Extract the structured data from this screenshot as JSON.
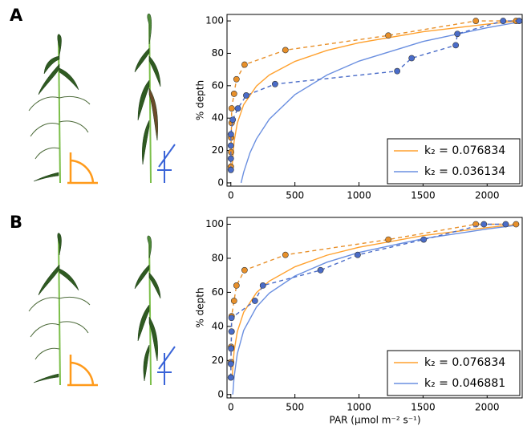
{
  "chart_data": [
    {
      "type": "line",
      "panel": "A",
      "ylabel": "% depth",
      "xlim": [
        -30,
        2280
      ],
      "ylim": [
        -2,
        104
      ],
      "xticks": [
        0,
        500,
        1000,
        1500,
        2000
      ],
      "yticks": [
        0,
        20,
        40,
        60,
        80,
        100
      ],
      "legend": "lower right",
      "series": [
        {
          "name": "k₂ = 0.076834",
          "color": "#ffa12e",
          "linestyle": "solid",
          "x": [
            10,
            25,
            50,
            100,
            200,
            300,
            500,
            750,
            1000,
            1500,
            2000,
            2250
          ],
          "values": [
            10.1,
            25.3,
            36.8,
            48.3,
            59.8,
            66.6,
            75.0,
            81.8,
            86.5,
            93.3,
            98.0,
            100
          ]
        },
        {
          "name": "k₂ = 0.036134",
          "color": "#6a8fe0",
          "linestyle": "solid",
          "x": [
            80,
            100,
            150,
            200,
            300,
            500,
            750,
            1000,
            1500,
            2000,
            2250
          ],
          "values": [
            0,
            6.6,
            18.7,
            27.2,
            39.3,
            54.5,
            66.6,
            75.2,
            87.3,
            95.8,
            99.3
          ]
        },
        {
          "color": "#e8902a",
          "linestyle": "dashed",
          "marker": true,
          "x": [
            0,
            2,
            2,
            6,
            6,
            25,
            44,
            107,
            426,
            1229,
            1912,
            2226
          ],
          "values": [
            10,
            19,
            28,
            37,
            46,
            55,
            64,
            73,
            82,
            91,
            100,
            100
          ]
        },
        {
          "color": "#4a6cc8",
          "linestyle": "dashed",
          "marker": true,
          "x": [
            0,
            0,
            0,
            0,
            15,
            55,
            120,
            345,
            1298,
            1411,
            1755,
            1768,
            2125,
            2250
          ],
          "values": [
            8,
            15,
            23,
            30,
            39,
            46,
            54,
            61,
            69,
            77,
            85,
            92,
            100,
            100
          ]
        }
      ]
    },
    {
      "type": "line",
      "panel": "B",
      "ylabel": "% depth",
      "xlabel": "PAR (μmol m⁻² s⁻¹)",
      "xlim": [
        -30,
        2280
      ],
      "ylim": [
        -2,
        104
      ],
      "xticks": [
        0,
        500,
        1000,
        1500,
        2000
      ],
      "yticks": [
        0,
        20,
        40,
        60,
        80,
        100
      ],
      "legend": "lower right",
      "series": [
        {
          "name": "k₂ = 0.076834",
          "color": "#ffa12e",
          "linestyle": "solid",
          "x": [
            10,
            25,
            50,
            100,
            200,
            300,
            500,
            750,
            1000,
            1500,
            2000,
            2250
          ],
          "values": [
            10.1,
            25.3,
            36.8,
            48.3,
            59.8,
            66.6,
            75.0,
            81.8,
            86.5,
            93.3,
            98.0,
            100
          ]
        },
        {
          "name": "k₂ = 0.046881",
          "color": "#6a8fe0",
          "linestyle": "solid",
          "x": [
            15,
            25,
            50,
            100,
            200,
            300,
            500,
            750,
            1000,
            1500,
            2000,
            2250
          ],
          "values": [
            0,
            10.0,
            23.8,
            37.6,
            51.4,
            59.5,
            69.6,
            77.7,
            83.4,
            91.5,
            97.2,
            99.6
          ]
        },
        {
          "color": "#e8902a",
          "linestyle": "dashed",
          "marker": true,
          "x": [
            0,
            2,
            2,
            6,
            6,
            25,
            44,
            107,
            426,
            1229,
            1912,
            2226
          ],
          "values": [
            10,
            19,
            28,
            37,
            46,
            55,
            64,
            73,
            82,
            91,
            100,
            100
          ]
        },
        {
          "color": "#4a6cc8",
          "linestyle": "dashed",
          "marker": true,
          "x": [
            0,
            0,
            2,
            5,
            5,
            188,
            250,
            700,
            990,
            1505,
            1975,
            2145
          ],
          "values": [
            10,
            18,
            27,
            37,
            45,
            55,
            64,
            73,
            82,
            91,
            100,
            100
          ]
        }
      ]
    }
  ]
}
